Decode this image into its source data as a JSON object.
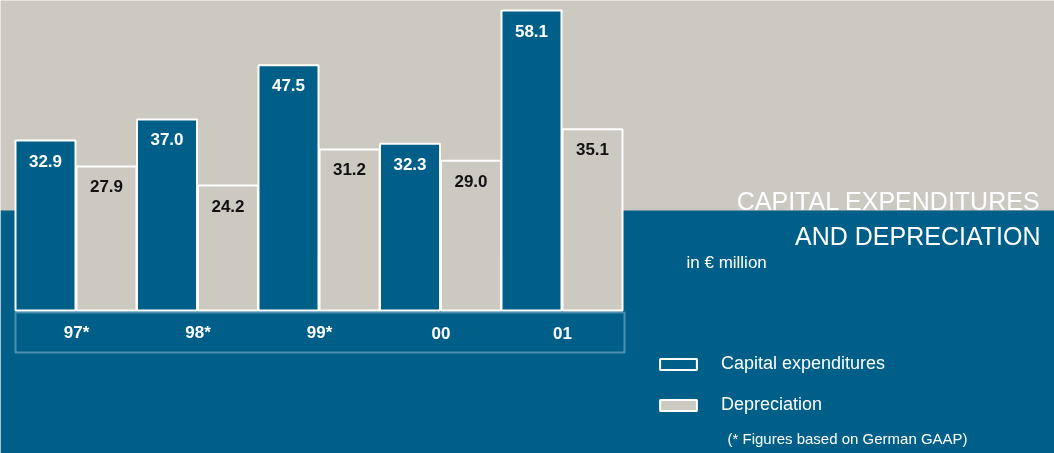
{
  "chart_data": {
    "type": "bar",
    "title": "CAPITAL EXPENDITURES\nAND DEPRECIATION",
    "subtitle": "in € million",
    "categories": [
      "97*",
      "98*",
      "99*",
      "00",
      "01"
    ],
    "series": [
      {
        "name": "Capital expenditures",
        "color": "#005f88",
        "values": [
          32.9,
          37.0,
          47.5,
          32.3,
          58.1
        ],
        "value_labels": [
          "32.9",
          "37.0",
          "47.5",
          "32.3",
          "58.1"
        ]
      },
      {
        "name": "Depreciation",
        "color": "#ccc9c1",
        "values": [
          27.9,
          24.2,
          31.2,
          29.0,
          35.1
        ],
        "value_labels": [
          "27.9",
          "24.2",
          "31.2",
          "29.0",
          "35.1"
        ]
      }
    ],
    "legend": "bottom right",
    "grid": false,
    "annotations": [
      "(* Figures based on German GAAP)"
    ]
  }
}
